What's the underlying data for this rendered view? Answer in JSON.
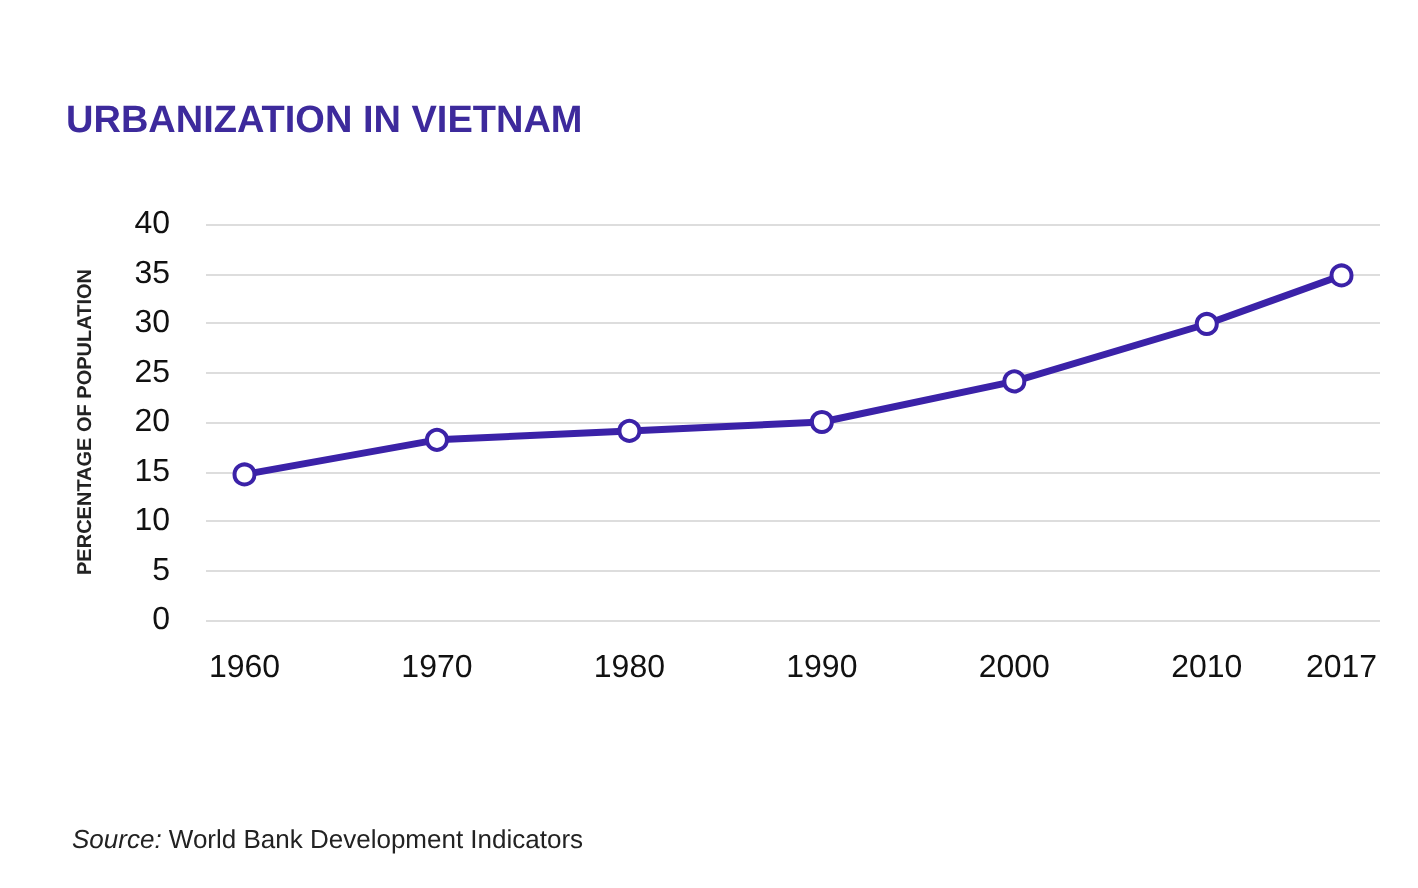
{
  "chart_data": {
    "type": "line",
    "title": "URBANIZATION IN VIETNAM",
    "ylabel": "PERCENTAGE OF POPULATION",
    "annotations": [
      "Source: World Bank Development Indicators"
    ],
    "x": [
      1960,
      1970,
      1980,
      1990,
      2000,
      2010,
      2017
    ],
    "series": [
      {
        "color": "#3b22a8",
        "values": [
          14.7,
          18.2,
          19.1,
          20.0,
          24.1,
          29.9,
          34.8
        ]
      }
    ],
    "xlim": [
      1958,
      2019
    ],
    "xticks": [
      1960,
      1970,
      1980,
      1990,
      2000,
      2010,
      2017
    ],
    "ylim": [
      0,
      40
    ],
    "yticks": [
      0,
      5,
      10,
      15,
      20,
      25,
      30,
      35,
      40
    ],
    "grid": "y",
    "marker": "circle",
    "line_style": "solid"
  }
}
